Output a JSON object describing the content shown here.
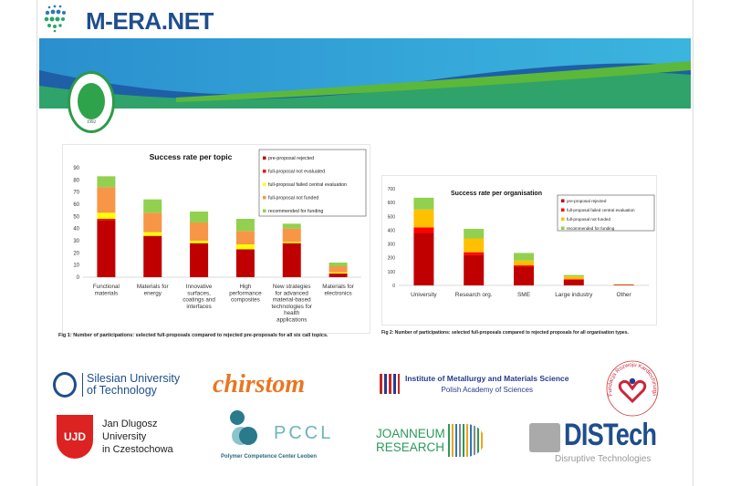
{
  "header": {
    "brand": "M-ERA.NET",
    "seal_year": "1992",
    "seal_text": "KOCAELİ ÜNİVERSİTESİ"
  },
  "colors": {
    "rejected": "#c00000",
    "not_evaluated": "#ff0000",
    "failed": "#ffff00",
    "not_funded": "#f79646",
    "not_funded2": "#ffc000",
    "recommended": "#92d050"
  },
  "chart_data": [
    {
      "type": "bar",
      "stacked": true,
      "title": "Success rate per topic",
      "ylim": [
        0,
        90
      ],
      "yticks": [
        0,
        10,
        20,
        30,
        40,
        50,
        60,
        70,
        80,
        90
      ],
      "legend": "top-right",
      "categories": [
        "Functional materials",
        "Materials for energy",
        "Innovative surfaces, coatings and interfaces",
        "High performance composites",
        "New strategies for advanced material-based technologies for health applications",
        "Materials for electronics"
      ],
      "series": [
        {
          "name": "pre-proposal rejected",
          "color": "#c00000",
          "values": [
            47,
            34,
            28,
            23,
            28,
            3
          ]
        },
        {
          "name": "full-proposal not evaluated",
          "color": "#ff0000",
          "values": [
            1,
            0,
            0,
            0,
            0,
            0
          ]
        },
        {
          "name": "full-proposal failed central evaluation",
          "color": "#ffff00",
          "values": [
            5,
            3,
            2,
            4,
            1,
            1
          ]
        },
        {
          "name": "full-proposal not funded",
          "color": "#f79646",
          "values": [
            21,
            16,
            15,
            11,
            11,
            5
          ]
        },
        {
          "name": "recommended for funding",
          "color": "#92d050",
          "values": [
            9,
            11,
            9,
            10,
            4,
            3
          ]
        }
      ],
      "caption": "Fig 1: Number of participations: selected full-proposals compared to rejected pre-proposals for all six call topics."
    },
    {
      "type": "bar",
      "stacked": true,
      "title": "Success rate per organisation",
      "ylim": [
        0,
        700
      ],
      "yticks": [
        0,
        100,
        200,
        300,
        400,
        500,
        600,
        700
      ],
      "legend": "top-right",
      "categories": [
        "University",
        "Research org.",
        "SME",
        "Large industry",
        "Other"
      ],
      "series": [
        {
          "name": "pre-proposal rejected",
          "color": "#c00000",
          "values": [
            380,
            220,
            135,
            40,
            5
          ]
        },
        {
          "name": "full-proposal failed central evaluation",
          "color": "#ff0000",
          "values": [
            40,
            20,
            10,
            5,
            0
          ]
        },
        {
          "name": "full-proposal not funded",
          "color": "#ffc000",
          "values": [
            130,
            100,
            35,
            20,
            3
          ]
        },
        {
          "name": "recommended for funding",
          "color": "#92d050",
          "values": [
            85,
            70,
            55,
            10,
            0
          ]
        }
      ],
      "caption": "Fig 2: Number of participations: selected full-proposals compared to rejected proposals for all organisation types."
    }
  ],
  "partners": {
    "silesian": [
      "Silesian University",
      "of Technology"
    ],
    "chirstom": "chirstom",
    "imim": [
      "Institute of Metallurgy and Materials Science",
      "Polish Academy of Sciences"
    ],
    "fundacja": "Fundacja Rozwoju Kardiochirurgii",
    "jdu": [
      "Jan Dlugosz",
      "University",
      "in Czestochowa"
    ],
    "jdu_mark": "UJD",
    "pccl": "PCCL",
    "pccl_sub": "Polymer Competence Center Leoben",
    "joanneum": [
      "JOANNEUM",
      "RESEARCH"
    ],
    "distech": "DISTech",
    "distech_sub": "Disruptive Technologies"
  }
}
